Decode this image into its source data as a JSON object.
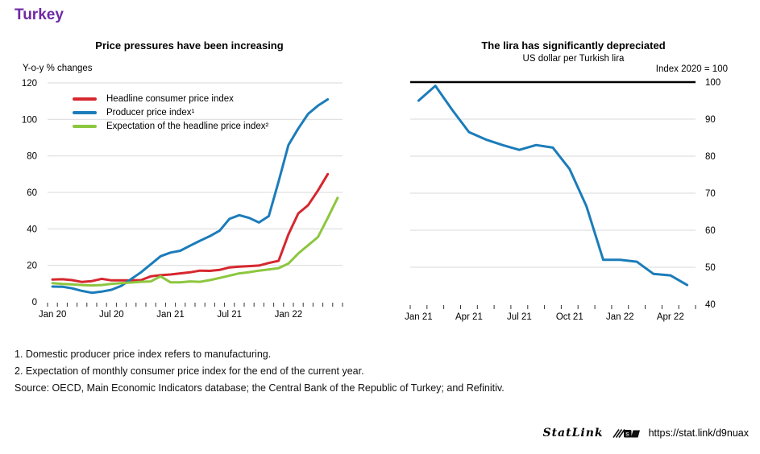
{
  "page": {
    "title": "Turkey",
    "accent_color": "#6f2aa3",
    "footnotes": [
      "1. Domestic producer price index refers to manufacturing.",
      "2. Expectation of monthly consumer price index for the end of the current year.",
      "Source: OECD, Main Economic Indicators database; the Central Bank of the Republic of Turkey; and Refinitiv."
    ],
    "statlink": {
      "label": "StatLink",
      "url": "https://stat.link/d9nuax"
    }
  },
  "chart_data": [
    {
      "id": "price-pressures",
      "type": "line",
      "title": "Price pressures have been increasing",
      "unit_label": "Y-o-y % changes",
      "x_range": "Jan 2020 - Jun 2022, monthly",
      "n_months": 30,
      "ylim": [
        0,
        120
      ],
      "y_tick_labels": [
        0,
        20,
        40,
        60,
        80,
        100,
        120
      ],
      "yaxis_side": "left",
      "grid_color": "#d9d9d9",
      "legend_position": "top-left",
      "x_tick_labels": [
        {
          "label": "Jan 20",
          "month": 0
        },
        {
          "label": "Jul 20",
          "month": 6
        },
        {
          "label": "Jan 21",
          "month": 12
        },
        {
          "label": "Jul 21",
          "month": 18
        },
        {
          "label": "Jan 22",
          "month": 24
        }
      ],
      "series": [
        {
          "name": "Headline consumer price index",
          "color": "#d6272e",
          "values": [
            12.2,
            12.4,
            11.9,
            10.9,
            11.4,
            12.6,
            11.8,
            11.8,
            11.8,
            11.9,
            14.0,
            14.6,
            15.0,
            15.6,
            16.2,
            17.1,
            17.0,
            17.5,
            18.9,
            19.3,
            19.6,
            19.9,
            21.3,
            22.5,
            37.0,
            48.5,
            53.0,
            61.0,
            70.0
          ]
        },
        {
          "name": "Producer price index¹",
          "color": "#1b7cba",
          "values": [
            8.4,
            8.3,
            7.4,
            6.0,
            5.0,
            5.6,
            6.6,
            8.8,
            12.5,
            16.2,
            20.6,
            25.0,
            27.0,
            28.0,
            30.8,
            33.5,
            36.0,
            39.0,
            45.5,
            47.5,
            46.0,
            43.5,
            47.0,
            66.0,
            86.0,
            95.0,
            103.0,
            107.5,
            111.0
          ]
        },
        {
          "name": "Expectation of the headline price index²",
          "color": "#8dc63f",
          "values": [
            10.3,
            9.8,
            9.6,
            9.2,
            9.0,
            9.2,
            9.9,
            10.3,
            10.6,
            11.0,
            11.2,
            14.0,
            10.7,
            10.7,
            11.2,
            11.0,
            11.9,
            13.1,
            14.4,
            15.6,
            16.3,
            17.1,
            17.8,
            18.5,
            21.0,
            26.5,
            31.0,
            35.5,
            46.0,
            57.0
          ]
        }
      ]
    },
    {
      "id": "lira-depreciation",
      "type": "line",
      "title": "The lira has significantly depreciated",
      "subtitle": "US dollar per Turkish lira",
      "axis_note": "Index 2020 = 100",
      "x_range": "Jan 2021 - May 2022, monthly",
      "n_months": 17,
      "ylim": [
        40,
        100
      ],
      "y_tick_labels": [
        40,
        50,
        60,
        70,
        80,
        90,
        100
      ],
      "yaxis_side": "right",
      "grid_color": "#d9d9d9",
      "baseline_value": 100,
      "x_tick_labels": [
        {
          "label": "Jan 21",
          "month": 0
        },
        {
          "label": "Apr 21",
          "month": 3
        },
        {
          "label": "Jul 21",
          "month": 6
        },
        {
          "label": "Oct 21",
          "month": 9
        },
        {
          "label": "Jan 22",
          "month": 12
        },
        {
          "label": "Apr 22",
          "month": 15
        }
      ],
      "series": [
        {
          "name": "US dollar per Turkish lira",
          "color": "#1b7cba",
          "values": [
            95.0,
            99.0,
            92.5,
            86.5,
            84.5,
            83.0,
            81.7,
            83.0,
            82.3,
            76.5,
            66.5,
            52.0,
            52.0,
            51.5,
            48.2,
            47.8,
            45.2
          ]
        }
      ]
    }
  ]
}
